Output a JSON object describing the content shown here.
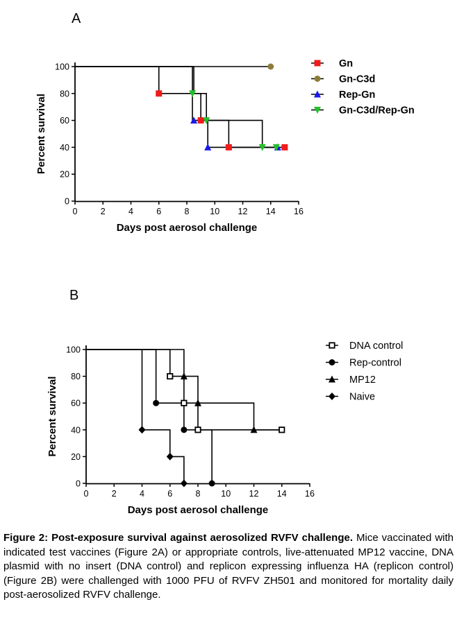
{
  "chart_data": [
    {
      "panel_label": "A",
      "type": "line",
      "step": true,
      "xlabel": "Days post aerosol challenge",
      "ylabel": "Percent survival",
      "xlim": [
        0,
        16
      ],
      "ylim": [
        0,
        100
      ],
      "xticks": [
        "0",
        "2",
        "4",
        "6",
        "8",
        "10",
        "12",
        "14",
        "16"
      ],
      "yticks": [
        "0",
        "20",
        "40",
        "60",
        "80",
        "100"
      ],
      "legend_position": "right",
      "legend_bold": true,
      "series": [
        {
          "name": "Gn",
          "color": "#ee1c1c",
          "marker": "square",
          "x": [
            0,
            6,
            9,
            11,
            15
          ],
          "y": [
            100,
            80,
            60,
            40,
            40
          ],
          "marker_x": [
            6,
            9,
            11,
            15
          ],
          "marker_y": [
            80,
            60,
            40,
            40
          ]
        },
        {
          "name": "Gn-C3d",
          "color": "#8c7d3a",
          "marker": "circle",
          "x": [
            0,
            14
          ],
          "y": [
            100,
            100
          ],
          "marker_x": [
            14
          ],
          "marker_y": [
            100
          ]
        },
        {
          "name": "Rep-Gn",
          "color": "#1a1ae6",
          "marker": "triangle-up",
          "x": [
            0,
            8.4,
            9.5,
            14.4
          ],
          "y": [
            100,
            60,
            40,
            40
          ],
          "marker_x": [
            8.5,
            9.5,
            14.5
          ],
          "marker_y": [
            60,
            40,
            40
          ]
        },
        {
          "name": "Gn-C3d/Rep-Gn",
          "color": "#22c12a",
          "marker": "triangle-down",
          "x": [
            0,
            8.5,
            9.4,
            13.4,
            14.4
          ],
          "y": [
            100,
            80,
            60,
            40,
            40
          ],
          "marker_x": [
            8.4,
            9.4,
            13.4,
            14.4
          ],
          "marker_y": [
            80,
            60,
            40,
            40
          ]
        }
      ]
    },
    {
      "panel_label": "B",
      "type": "line",
      "step": true,
      "xlabel": "Days post aerosol challenge",
      "ylabel": "Percent survival",
      "xlim": [
        0,
        16
      ],
      "ylim": [
        0,
        100
      ],
      "xticks": [
        "0",
        "2",
        "4",
        "6",
        "8",
        "10",
        "12",
        "14",
        "16"
      ],
      "yticks": [
        "0",
        "20",
        "40",
        "60",
        "80",
        "100"
      ],
      "legend_position": "right",
      "legend_bold": false,
      "series": [
        {
          "name": "DNA control",
          "color": "#000000",
          "marker": "open-square",
          "x": [
            0,
            6,
            7,
            8,
            14
          ],
          "y": [
            100,
            80,
            60,
            40,
            40
          ],
          "marker_x": [
            6,
            7,
            8,
            14
          ],
          "marker_y": [
            80,
            60,
            40,
            40
          ]
        },
        {
          "name": "Rep-control",
          "color": "#000000",
          "marker": "circle",
          "x": [
            0,
            5,
            7,
            9
          ],
          "y": [
            100,
            60,
            40,
            0
          ],
          "marker_x": [
            5,
            7,
            9
          ],
          "marker_y": [
            60,
            40,
            0
          ]
        },
        {
          "name": "MP12",
          "color": "#000000",
          "marker": "triangle-up",
          "x": [
            0,
            7,
            8,
            12,
            14
          ],
          "y": [
            100,
            80,
            60,
            40,
            40
          ],
          "marker_x": [
            7,
            8,
            12
          ],
          "marker_y": [
            80,
            60,
            40
          ]
        },
        {
          "name": "Naive",
          "color": "#000000",
          "marker": "diamond",
          "x": [
            0,
            4,
            6,
            7
          ],
          "y": [
            100,
            40,
            20,
            0
          ],
          "marker_x": [
            4,
            6,
            7
          ],
          "marker_y": [
            40,
            20,
            0
          ]
        }
      ]
    }
  ],
  "caption": {
    "title": "Figure 2: Post-exposure survival against aerosolized RVFV challenge.",
    "body": "Mice vaccinated with indicated test vaccines (Figure 2A) or appropriate controls, live-attenuated MP12 vaccine, DNA plasmid with no insert (DNA control) and replicon expressing influenza HA (replicon control)  (Figure 2B) were challenged with 1000 PFU of RVFV ZH501 and monitored for mortality daily post-aerosolized RVFV challenge."
  }
}
